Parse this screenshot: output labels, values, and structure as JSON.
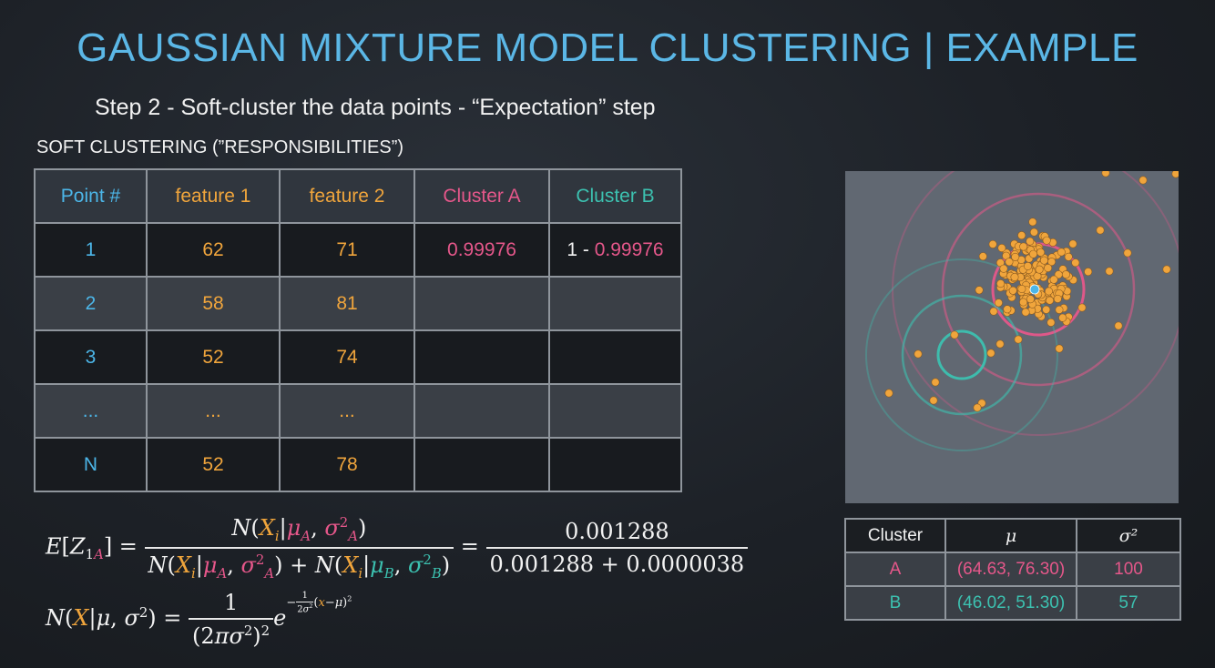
{
  "title": "GAUSSIAN MIXTURE MODEL CLUSTERING | EXAMPLE",
  "step": "Step 2 - Soft-cluster the data points - “Expectation” step",
  "soft_label": "SOFT CLUSTERING (”RESPONSIBILITIES”)",
  "table": {
    "headers": [
      "Point #",
      "feature 1",
      "feature 2",
      "Cluster A",
      "Cluster B"
    ],
    "rows": [
      {
        "point": "1",
        "f1": "62",
        "f2": "71",
        "a": "0.99976",
        "b_prefix": "1 - ",
        "b_value": "0.99976"
      },
      {
        "point": "2",
        "f1": "58",
        "f2": "81",
        "a": "",
        "b_prefix": "",
        "b_value": ""
      },
      {
        "point": "3",
        "f1": "52",
        "f2": "74",
        "a": "",
        "b_prefix": "",
        "b_value": ""
      },
      {
        "point": "...",
        "f1": "...",
        "f2": "...",
        "a": "",
        "b_prefix": "",
        "b_value": ""
      },
      {
        "point": "N",
        "f1": "52",
        "f2": "78",
        "a": "",
        "b_prefix": "",
        "b_value": ""
      }
    ]
  },
  "formula": {
    "numeric_num": "0.001288",
    "numeric_den": "0.001288 + 0.0000038"
  },
  "params": {
    "headers": [
      "Cluster",
      "μ",
      "σ²"
    ],
    "rows": [
      {
        "cluster": "A",
        "mu": "(64.63, 76.30)",
        "sigma": "100"
      },
      {
        "cluster": "B",
        "mu": "(46.02, 51.30)",
        "sigma": "57"
      }
    ]
  },
  "colors": {
    "title": "#5bb7e6",
    "point": "#f0a53c",
    "cluster_a": "#e5578a",
    "cluster_b": "#3cc1b0",
    "plot_bg": "#616872"
  },
  "icons": [
    "scatter-plot"
  ]
}
